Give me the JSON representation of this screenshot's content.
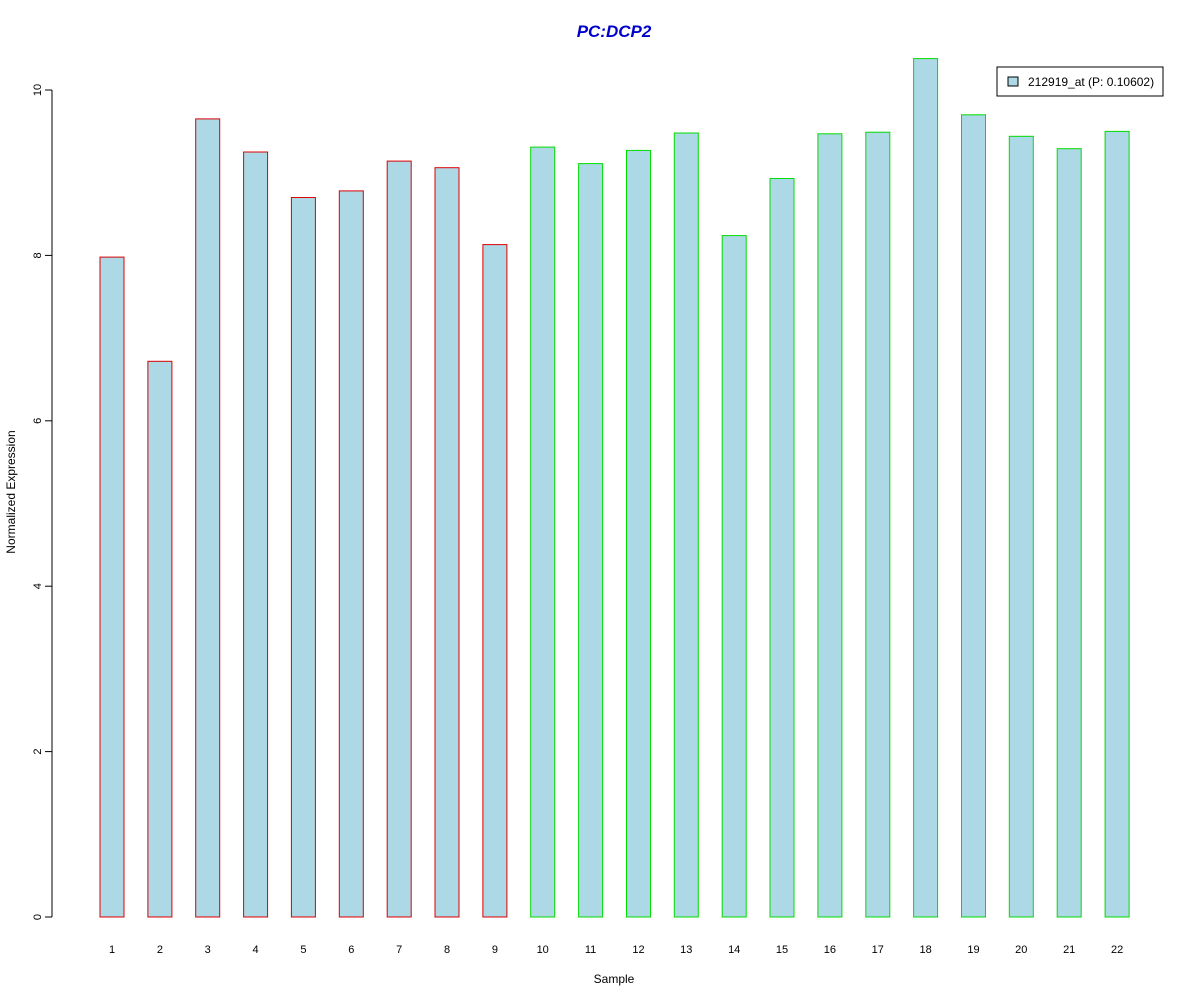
{
  "chart_data": {
    "type": "bar",
    "title": "PC:DCP2",
    "xlabel": "Sample",
    "ylabel": "Normalized Expression",
    "categories": [
      "1",
      "2",
      "3",
      "4",
      "5",
      "6",
      "7",
      "8",
      "9",
      "10",
      "11",
      "12",
      "13",
      "14",
      "15",
      "16",
      "17",
      "18",
      "19",
      "20",
      "21",
      "22"
    ],
    "series": [
      {
        "name": "212919_at (P: 0.10602)",
        "values": [
          7.98,
          6.72,
          9.65,
          9.25,
          8.7,
          8.78,
          9.14,
          9.06,
          8.13,
          9.31,
          9.11,
          9.27,
          9.48,
          8.24,
          8.93,
          9.47,
          9.49,
          10.38,
          9.7,
          9.44,
          9.29,
          9.5
        ]
      }
    ],
    "groups": [
      {
        "samples": [
          1,
          9
        ],
        "border_color": "#dd0000"
      },
      {
        "samples": [
          10,
          22
        ],
        "border_color": "#00dd00"
      }
    ],
    "bar_fill": "#add8e6",
    "title_color": "#0000cc",
    "ylim": [
      0,
      10.38
    ],
    "yticks": [
      0,
      2,
      4,
      6,
      8,
      10
    ],
    "grid": false,
    "legend_position": "top-right"
  }
}
